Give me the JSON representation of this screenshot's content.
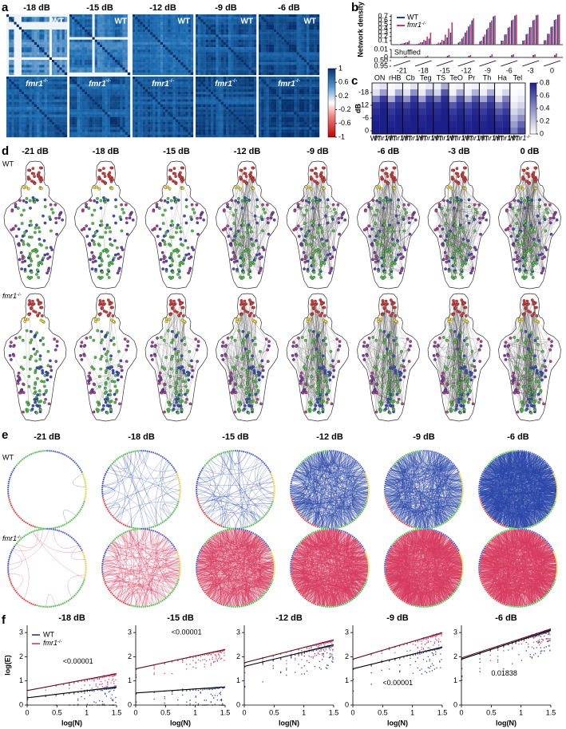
{
  "panel_a": {
    "label": "a",
    "titles": [
      "-18 dB",
      "-15 dB",
      "-12 dB",
      "-9 dB",
      "-6 dB"
    ],
    "row_labels": [
      "WT",
      {
        "gene": "fmr1",
        "genotype": "-/-"
      }
    ],
    "colorbar": {
      "lim": [
        -1,
        1
      ],
      "ticks": [
        1,
        0.6,
        0.2,
        -0.2,
        -0.6,
        -1
      ]
    }
  },
  "panel_b": {
    "label": "b",
    "ylabel": "Network density",
    "ylim": [
      0,
      0.75
    ],
    "yticks": [
      0.1,
      0.2,
      0.3,
      0.4,
      0.5,
      0.6,
      0.7
    ],
    "categories": [
      -21,
      -18,
      -15,
      -12,
      -9,
      -6,
      -3,
      0
    ],
    "series": [
      {
        "name": "WT",
        "color": "#1f3f8f",
        "values": [
          [
            0,
            0.01,
            0.02,
            0.04,
            0.06
          ],
          [
            0.01,
            0.03,
            0.06,
            0.1,
            0.15
          ],
          [
            0.02,
            0.05,
            0.1,
            0.18,
            0.3
          ],
          [
            0.05,
            0.15,
            0.3,
            0.45,
            0.6
          ],
          [
            0.08,
            0.2,
            0.38,
            0.55,
            0.7
          ],
          [
            0.1,
            0.25,
            0.42,
            0.6,
            0.72
          ],
          [
            0.1,
            0.26,
            0.43,
            0.6,
            0.73
          ],
          [
            0.11,
            0.27,
            0.44,
            0.61,
            0.74
          ]
        ]
      },
      {
        "name": {
          "gene": "fmr1",
          "genotype": "-/-"
        },
        "color": "#c8385a",
        "values": [
          [
            0,
            0.01,
            0.03,
            0.06,
            0.1
          ],
          [
            0.02,
            0.06,
            0.12,
            0.2,
            0.3
          ],
          [
            0.05,
            0.12,
            0.25,
            0.4,
            0.55
          ],
          [
            0.08,
            0.2,
            0.35,
            0.5,
            0.65
          ],
          [
            0.1,
            0.25,
            0.42,
            0.6,
            0.72
          ],
          [
            0.1,
            0.26,
            0.44,
            0.62,
            0.74
          ],
          [
            0.11,
            0.27,
            0.44,
            0.62,
            0.74
          ],
          [
            0.11,
            0.27,
            0.45,
            0.63,
            0.75
          ]
        ]
      }
    ],
    "shuffled_label": "Shuffled",
    "shuffled_ylim": [
      0,
      0.01
    ],
    "shuffled_yticks": [
      0.01,
      0
    ],
    "shuffled_values": [
      [
        0.001,
        0.002
      ],
      [
        0.001,
        0.002
      ],
      [
        0.002,
        0.003
      ],
      [
        0.002,
        0.003
      ],
      [
        0.002,
        0.004
      ],
      [
        0.003,
        0.004
      ],
      [
        0.003,
        0.004
      ],
      [
        0.003,
        0.005
      ]
    ],
    "break_ylim": [
      0.5,
      0.95
    ],
    "break_ticks": [
      {
        "value": 0.5,
        "label": "0.50"
      },
      {
        "value": 0.95,
        "label": "0.95"
      }
    ]
  },
  "panel_c": {
    "label": "c",
    "ylabel": "dB",
    "rows": [
      -21,
      -18,
      -15,
      -12,
      -9,
      -6,
      -3,
      0
    ],
    "yticks": [
      -18,
      -12,
      -6,
      0
    ],
    "column_labels": [
      "WT",
      {
        "gene": "fmr1",
        "genotype": "-/-"
      }
    ],
    "colorbar": {
      "lim": [
        0,
        0.8
      ],
      "ticks": [
        0,
        0.2,
        0.4,
        0.6,
        0.8
      ]
    },
    "regions": [
      {
        "name": "ON",
        "wt": [
          0.05,
          0.1,
          0.45,
          0.7,
          0.75,
          0.78,
          0.8,
          0.8
        ],
        "fmr": [
          0.1,
          0.35,
          0.7,
          0.78,
          0.8,
          0.8,
          0.8,
          0.8
        ]
      },
      {
        "name": "rHB",
        "wt": [
          0.02,
          0.05,
          0.3,
          0.65,
          0.72,
          0.76,
          0.78,
          0.8
        ],
        "fmr": [
          0.05,
          0.3,
          0.65,
          0.75,
          0.78,
          0.8,
          0.8,
          0.8
        ]
      },
      {
        "name": "Cb",
        "wt": [
          0.02,
          0.1,
          0.4,
          0.68,
          0.74,
          0.77,
          0.79,
          0.8
        ],
        "fmr": [
          0.1,
          0.4,
          0.7,
          0.76,
          0.79,
          0.8,
          0.8,
          0.8
        ]
      },
      {
        "name": "Teg",
        "wt": [
          0.03,
          0.08,
          0.35,
          0.66,
          0.73,
          0.77,
          0.78,
          0.8
        ],
        "fmr": [
          0.08,
          0.35,
          0.68,
          0.76,
          0.78,
          0.8,
          0.8,
          0.8
        ]
      },
      {
        "name": "TS",
        "wt": [
          0.05,
          0.15,
          0.5,
          0.72,
          0.76,
          0.78,
          0.8,
          0.8
        ],
        "fmr": [
          0.3,
          0.6,
          0.75,
          0.78,
          0.8,
          0.8,
          0.8,
          0.8
        ]
      },
      {
        "name": "TeO",
        "wt": [
          0.02,
          0.05,
          0.3,
          0.6,
          0.7,
          0.75,
          0.78,
          0.8
        ],
        "fmr": [
          0.05,
          0.3,
          0.62,
          0.72,
          0.77,
          0.79,
          0.8,
          0.8
        ]
      },
      {
        "name": "Pr",
        "wt": [
          0.02,
          0.06,
          0.3,
          0.62,
          0.7,
          0.75,
          0.78,
          0.79
        ],
        "fmr": [
          0.05,
          0.28,
          0.6,
          0.72,
          0.77,
          0.79,
          0.8,
          0.8
        ]
      },
      {
        "name": "Th",
        "wt": [
          0.02,
          0.06,
          0.32,
          0.62,
          0.7,
          0.75,
          0.78,
          0.79
        ],
        "fmr": [
          0.06,
          0.3,
          0.62,
          0.72,
          0.77,
          0.79,
          0.8,
          0.8
        ]
      },
      {
        "name": "Ha",
        "wt": [
          0.01,
          0.03,
          0.15,
          0.45,
          0.6,
          0.7,
          0.75,
          0.78
        ],
        "fmr": [
          0.03,
          0.15,
          0.45,
          0.6,
          0.7,
          0.76,
          0.78,
          0.8
        ]
      },
      {
        "name": "Tel",
        "wt": [
          0,
          0.01,
          0.03,
          0.08,
          0.15,
          0.25,
          0.35,
          0.45
        ],
        "fmr": [
          0.01,
          0.03,
          0.08,
          0.15,
          0.25,
          0.4,
          0.55,
          0.65
        ]
      }
    ]
  },
  "panel_d": {
    "label": "d",
    "titles": [
      "-21 dB",
      "-18 dB",
      "-15 dB",
      "-12 dB",
      "-9 dB",
      "-6 dB",
      "-3 dB",
      "0 dB"
    ],
    "row_labels": [
      "WT",
      {
        "gene": "fmr1",
        "genotype": "-/-"
      }
    ]
  },
  "panel_e": {
    "label": "e",
    "titles": [
      "-21 dB",
      "-18 dB",
      "-15 dB",
      "-12 dB",
      "-9 dB",
      "-6 dB"
    ],
    "row_labels": [
      "WT",
      {
        "gene": "fmr1",
        "genotype": "-/-"
      }
    ]
  },
  "panel_f": {
    "label": "f",
    "xlabel": "log(N)",
    "ylabel": "log(E)",
    "xlim": [
      0,
      1.5
    ],
    "xticks": [
      0,
      0.5,
      1,
      1.5
    ],
    "ylim": [
      0,
      3.3
    ],
    "yticks": [
      0,
      1,
      2,
      3
    ],
    "series": [
      {
        "name": "WT",
        "color": "#1f2d6e"
      },
      {
        "name": {
          "gene": "fmr1",
          "genotype": "-/-"
        },
        "color": "#c0325a"
      }
    ],
    "plots": [
      {
        "title": "-18 dB",
        "annotation": "<0.00001",
        "fits": [
          [
            0.3,
            0.75
          ],
          [
            0.6,
            1.3
          ]
        ]
      },
      {
        "title": "-15 dB",
        "annotation": "<0.00001",
        "fits": [
          [
            0.5,
            0.75
          ],
          [
            1.5,
            2.3
          ]
        ]
      },
      {
        "title": "-12 dB",
        "fits": [
          [
            1.6,
            2.5
          ],
          [
            1.75,
            2.7
          ]
        ]
      },
      {
        "title": "-9 dB",
        "annotation": "<0.00001",
        "fits": [
          [
            1.5,
            2.4
          ],
          [
            1.9,
            3.0
          ]
        ]
      },
      {
        "title": "-6 dB",
        "annotation": "0.01838",
        "fits": [
          [
            1.9,
            3.1
          ],
          [
            1.95,
            3.15
          ]
        ]
      }
    ]
  }
}
